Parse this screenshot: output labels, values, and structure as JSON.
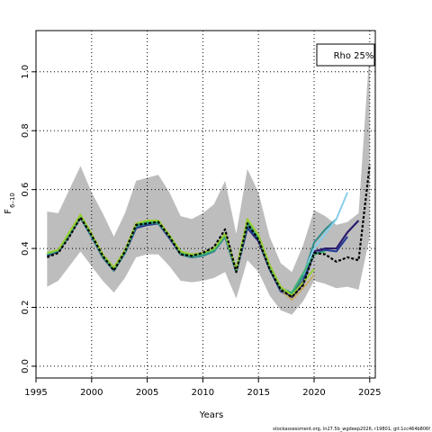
{
  "chart_data": {
    "type": "line",
    "xlabel": "Years",
    "ylabel_main": "F",
    "ylabel_sub": "6–10",
    "legend": "Rho 25%",
    "footer": "stockassessment.org, ln27.5b_wgdeep2026, r19801, git:1cc464b806f",
    "xlim": [
      1995,
      2025.5
    ],
    "ylim": [
      -0.04,
      1.14
    ],
    "x_ticks": [
      1995,
      2000,
      2005,
      2010,
      2015,
      2020,
      2025
    ],
    "y_ticks": [
      0.0,
      0.2,
      0.4,
      0.6,
      0.8,
      1.0
    ],
    "y_tick_labels": [
      "0.0",
      "0.2",
      "0.4",
      "0.6",
      "0.8",
      "1.0"
    ],
    "grid": true,
    "band": {
      "x": [
        1996,
        1997,
        1998,
        1999,
        2000,
        2001,
        2002,
        2003,
        2004,
        2005,
        2006,
        2007,
        2008,
        2009,
        2010,
        2011,
        2012,
        2013,
        2014,
        2015,
        2016,
        2017,
        2018,
        2019,
        2020,
        2021,
        2022,
        2023,
        2024,
        2025
      ],
      "lower": [
        0.27,
        0.29,
        0.34,
        0.39,
        0.34,
        0.29,
        0.25,
        0.3,
        0.37,
        0.38,
        0.38,
        0.34,
        0.29,
        0.285,
        0.29,
        0.3,
        0.32,
        0.23,
        0.36,
        0.32,
        0.24,
        0.19,
        0.175,
        0.22,
        0.29,
        0.28,
        0.265,
        0.27,
        0.26,
        0.44
      ],
      "upper": [
        0.525,
        0.52,
        0.6,
        0.68,
        0.59,
        0.52,
        0.44,
        0.52,
        0.63,
        0.64,
        0.65,
        0.59,
        0.51,
        0.5,
        0.52,
        0.55,
        0.63,
        0.45,
        0.67,
        0.59,
        0.44,
        0.35,
        0.32,
        0.41,
        0.53,
        0.51,
        0.48,
        0.49,
        0.52,
        1.08
      ]
    },
    "series": [
      {
        "color": "#000000",
        "dash": true,
        "width": 2.2,
        "x": [
          1996,
          1997,
          1998,
          1999,
          2000,
          2001,
          2002,
          2003,
          2004,
          2005,
          2006,
          2007,
          2008,
          2009,
          2010,
          2011,
          2012,
          2013,
          2014,
          2015,
          2016,
          2017,
          2018,
          2019,
          2020,
          2021,
          2022,
          2023,
          2024,
          2025
        ],
        "y": [
          0.37,
          0.385,
          0.44,
          0.505,
          0.445,
          0.375,
          0.325,
          0.39,
          0.48,
          0.485,
          0.49,
          0.44,
          0.38,
          0.375,
          0.385,
          0.405,
          0.465,
          0.32,
          0.485,
          0.43,
          0.33,
          0.26,
          0.235,
          0.275,
          0.385,
          0.38,
          0.355,
          0.37,
          0.36,
          0.685
        ]
      },
      {
        "color": "#2e1a6b",
        "dash": false,
        "width": 2.2,
        "x": [
          1996,
          1997,
          1998,
          1999,
          2000,
          2001,
          2002,
          2003,
          2004,
          2005,
          2006,
          2007,
          2008,
          2009,
          2010,
          2011,
          2012,
          2013,
          2014,
          2015,
          2016,
          2017,
          2018,
          2019,
          2020,
          2021,
          2022,
          2023,
          2024
        ],
        "y": [
          0.375,
          0.39,
          0.445,
          0.505,
          0.44,
          0.37,
          0.325,
          0.385,
          0.47,
          0.48,
          0.485,
          0.435,
          0.38,
          0.37,
          0.38,
          0.395,
          0.44,
          0.32,
          0.47,
          0.425,
          0.33,
          0.255,
          0.235,
          0.28,
          0.39,
          0.4,
          0.4,
          0.455,
          0.495
        ]
      },
      {
        "color": "#1f3a93",
        "dash": false,
        "width": 2.0,
        "x": [
          1996,
          1997,
          1998,
          1999,
          2000,
          2001,
          2002,
          2003,
          2004,
          2005,
          2006,
          2007,
          2008,
          2009,
          2010,
          2011,
          2012,
          2013,
          2014,
          2015,
          2016,
          2017,
          2018,
          2019,
          2020,
          2021,
          2022,
          2023
        ],
        "y": [
          0.38,
          0.39,
          0.445,
          0.505,
          0.44,
          0.37,
          0.325,
          0.385,
          0.47,
          0.48,
          0.485,
          0.435,
          0.38,
          0.37,
          0.375,
          0.39,
          0.44,
          0.32,
          0.47,
          0.43,
          0.33,
          0.255,
          0.24,
          0.29,
          0.38,
          0.395,
          0.39,
          0.44
        ]
      },
      {
        "color": "#2e8b8b",
        "dash": false,
        "width": 2.0,
        "x": [
          1996,
          1997,
          1998,
          1999,
          2000,
          2001,
          2002,
          2003,
          2004,
          2005,
          2006,
          2007,
          2008,
          2009,
          2010,
          2011,
          2012,
          2013,
          2014,
          2015,
          2016,
          2017,
          2018,
          2019,
          2020,
          2021,
          2022
        ],
        "y": [
          0.38,
          0.39,
          0.445,
          0.505,
          0.44,
          0.37,
          0.325,
          0.385,
          0.475,
          0.485,
          0.485,
          0.44,
          0.38,
          0.37,
          0.375,
          0.39,
          0.44,
          0.32,
          0.48,
          0.435,
          0.335,
          0.26,
          0.245,
          0.305,
          0.42,
          0.465,
          0.5
        ]
      },
      {
        "color": "#87ceeb",
        "dash": false,
        "width": 2.0,
        "x": [
          2019,
          2020,
          2021,
          2022,
          2023
        ],
        "y": [
          0.31,
          0.4,
          0.45,
          0.5,
          0.59
        ]
      },
      {
        "color": "#3cb371",
        "dash": false,
        "width": 2.0,
        "x": [
          1996,
          1997,
          1998,
          1999,
          2000,
          2001,
          2002,
          2003,
          2004,
          2005,
          2006,
          2007,
          2008,
          2009,
          2010,
          2011,
          2012,
          2013,
          2014,
          2015,
          2016,
          2017,
          2018,
          2019,
          2020,
          2021
        ],
        "y": [
          0.38,
          0.395,
          0.45,
          0.51,
          0.445,
          0.375,
          0.33,
          0.39,
          0.48,
          0.49,
          0.49,
          0.44,
          0.385,
          0.375,
          0.38,
          0.395,
          0.445,
          0.325,
          0.49,
          0.44,
          0.34,
          0.265,
          0.25,
          0.315,
          0.38,
          0.39
        ]
      },
      {
        "color": "#9acd32",
        "dash": false,
        "width": 2.0,
        "x": [
          1996,
          1997,
          1998,
          1999,
          2000,
          2001,
          2002,
          2003,
          2004,
          2005,
          2006,
          2007,
          2008,
          2009,
          2010,
          2011,
          2012,
          2013,
          2014,
          2015,
          2016,
          2017,
          2018,
          2019,
          2020
        ],
        "y": [
          0.385,
          0.395,
          0.455,
          0.515,
          0.45,
          0.38,
          0.335,
          0.395,
          0.485,
          0.495,
          0.495,
          0.445,
          0.39,
          0.38,
          0.385,
          0.4,
          0.45,
          0.33,
          0.5,
          0.445,
          0.345,
          0.27,
          0.24,
          0.285,
          0.33
        ]
      },
      {
        "color": "#c8a85a",
        "dash": false,
        "width": 1.6,
        "x": [
          2017,
          2018,
          2019,
          2020
        ],
        "y": [
          0.26,
          0.225,
          0.265,
          0.31
        ]
      }
    ]
  }
}
